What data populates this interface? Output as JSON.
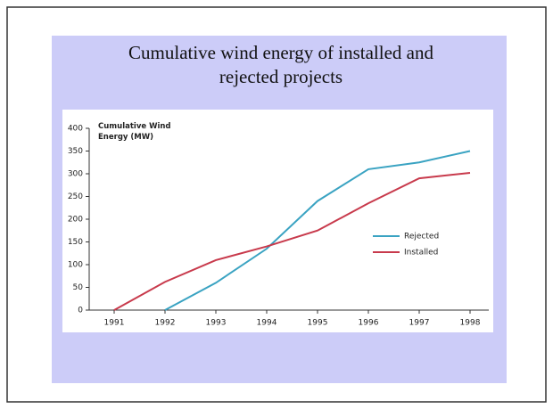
{
  "chart_data": {
    "type": "line",
    "title": "Cumulative wind energy of installed and rejected projects",
    "y_label": "Cumulative Wind Energy (MW)",
    "categories": [
      "1991",
      "1992",
      "1993",
      "1994",
      "1995",
      "1996",
      "1997",
      "1998"
    ],
    "series": [
      {
        "name": "Rejected",
        "color": "#3aa3c2",
        "values": [
          null,
          0,
          60,
          135,
          240,
          310,
          325,
          350
        ]
      },
      {
        "name": "Installed",
        "color": "#c83a4c",
        "values": [
          0,
          62,
          110,
          140,
          175,
          235,
          290,
          302
        ]
      }
    ],
    "ylim": [
      0,
      400
    ],
    "yticks": [
      0,
      50,
      100,
      150,
      200,
      250,
      300,
      350,
      400
    ],
    "legend": "right",
    "grid": false
  }
}
